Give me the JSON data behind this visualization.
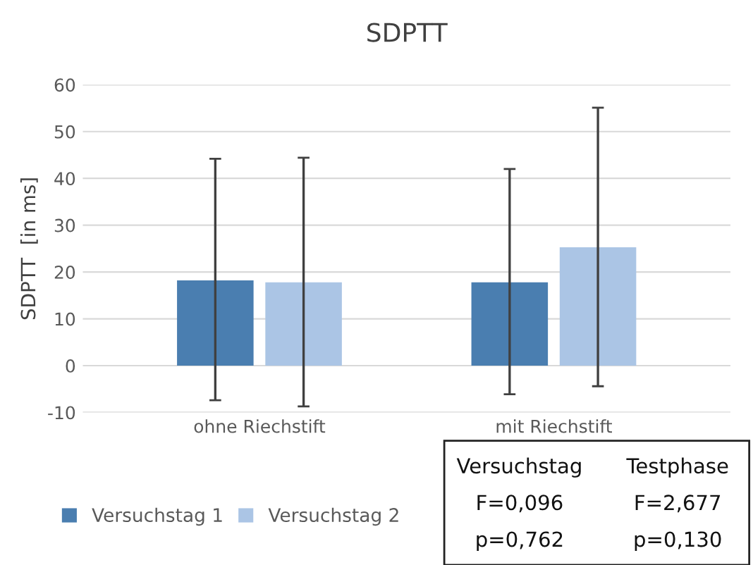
{
  "chart_data": {
    "type": "bar",
    "title": "SDPTT",
    "ylabel": "SDPTT  [in ms]",
    "categories": [
      "ohne Riechstift",
      "mit Riechstift"
    ],
    "series": [
      {
        "name": "Versuchstag 1",
        "color": "#4a7eb0",
        "values": [
          18.2,
          17.8
        ],
        "errors": [
          [
            -7.4,
            44.2
          ],
          [
            -6.1,
            42.0
          ]
        ]
      },
      {
        "name": "Versuchstag 2",
        "color": "#abc5e5",
        "values": [
          17.8,
          25.3
        ],
        "errors": [
          [
            -8.7,
            44.4
          ],
          [
            -4.4,
            55.1
          ]
        ]
      }
    ],
    "ylim": [
      -10,
      60
    ],
    "yticks": [
      -10,
      0,
      10,
      20,
      30,
      40,
      50,
      60
    ],
    "grid": "y",
    "legend": "bottom",
    "annotations": [
      "Versuchstag",
      "F=0,096",
      "p=0,762",
      "Testphase",
      "F=2,677",
      "p=0,130"
    ]
  }
}
